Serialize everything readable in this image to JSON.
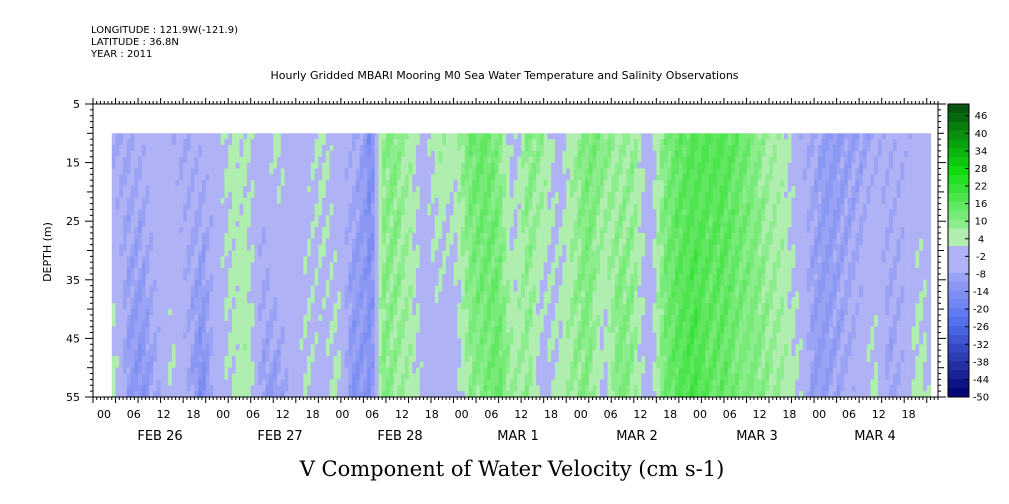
{
  "header": {
    "longitude": "LONGITUDE : 121.9W(-121.9)",
    "latitude": "LATITUDE : 36.8N",
    "year": "YEAR : 2011"
  },
  "chart_data": {
    "type": "heatmap",
    "title": "Hourly Gridded MBARI Mooring M0 Sea Water Temperature and Salinity Observations",
    "xlabel": "V Component of Water Velocity (cm s-1)",
    "ylabel": "DEPTH (m)",
    "y_range": [
      5,
      55
    ],
    "y_ticks": [
      5,
      15,
      25,
      35,
      45,
      55
    ],
    "y_axis_inverted": true,
    "data_depth_range": [
      10,
      55
    ],
    "x_range_hours": [
      0,
      225
    ],
    "x_hour_labels": [
      "00",
      "06",
      "12",
      "18",
      "00",
      "06",
      "12",
      "18",
      "00",
      "06",
      "12",
      "18",
      "00",
      "06",
      "12",
      "18",
      "00",
      "06",
      "12",
      "18",
      "00",
      "06",
      "12",
      "18",
      "00",
      "06",
      "12",
      "18"
    ],
    "x_day_labels": [
      "FEB 26",
      "FEB 27",
      "FEB 28",
      "MAR  1",
      "MAR  2",
      "MAR  3",
      "MAR  4"
    ],
    "data_start_hour": 5,
    "data_end_hour": 223,
    "colorbar": {
      "labels": [
        "46",
        "40",
        "34",
        "28",
        "22",
        "16",
        "10",
        "4",
        "-2",
        "-8",
        "-14",
        "-20",
        "-26",
        "-32",
        "-38",
        "-44",
        "-50"
      ],
      "min": -50,
      "max": 50,
      "step": 3
    },
    "time_columns": {
      "hours": [
        5,
        9,
        13,
        17,
        21,
        25,
        29,
        33,
        37,
        41,
        45,
        49,
        53,
        57,
        61,
        65,
        69,
        73,
        74,
        77,
        80,
        84,
        88,
        92,
        96,
        100,
        104,
        108,
        112,
        116,
        120,
        124,
        128,
        132,
        136,
        140,
        144,
        148,
        152,
        156,
        160,
        164,
        168,
        172,
        176,
        180,
        184,
        188,
        192,
        196,
        200,
        204,
        208,
        212,
        216,
        220,
        223
      ],
      "v_surface": [
        -8,
        -8,
        -6,
        -2,
        -6,
        -8,
        -5,
        -4,
        4,
        2,
        -5,
        4,
        -4,
        -3,
        4,
        -5,
        -6,
        -12,
        -18,
        8,
        10,
        6,
        -4,
        6,
        4,
        12,
        14,
        10,
        -3,
        10,
        8,
        -4,
        6,
        12,
        10,
        6,
        8,
        -4,
        10,
        14,
        16,
        16,
        16,
        14,
        10,
        6,
        4,
        -6,
        -8,
        -12,
        -10,
        -10,
        -8,
        -6,
        -6,
        -5,
        -5
      ],
      "v_bottom": [
        6,
        -10,
        -14,
        -8,
        2,
        -6,
        -16,
        -4,
        2,
        6,
        -10,
        -12,
        -4,
        2,
        -4,
        4,
        -14,
        -12,
        -16,
        10,
        8,
        6,
        -2,
        -4,
        -6,
        8,
        10,
        14,
        6,
        8,
        -4,
        4,
        8,
        10,
        -2,
        12,
        8,
        -6,
        12,
        16,
        18,
        14,
        14,
        10,
        10,
        8,
        6,
        2,
        -12,
        -10,
        -8,
        -4,
        4,
        -10,
        -6,
        6,
        -2
      ]
    }
  }
}
